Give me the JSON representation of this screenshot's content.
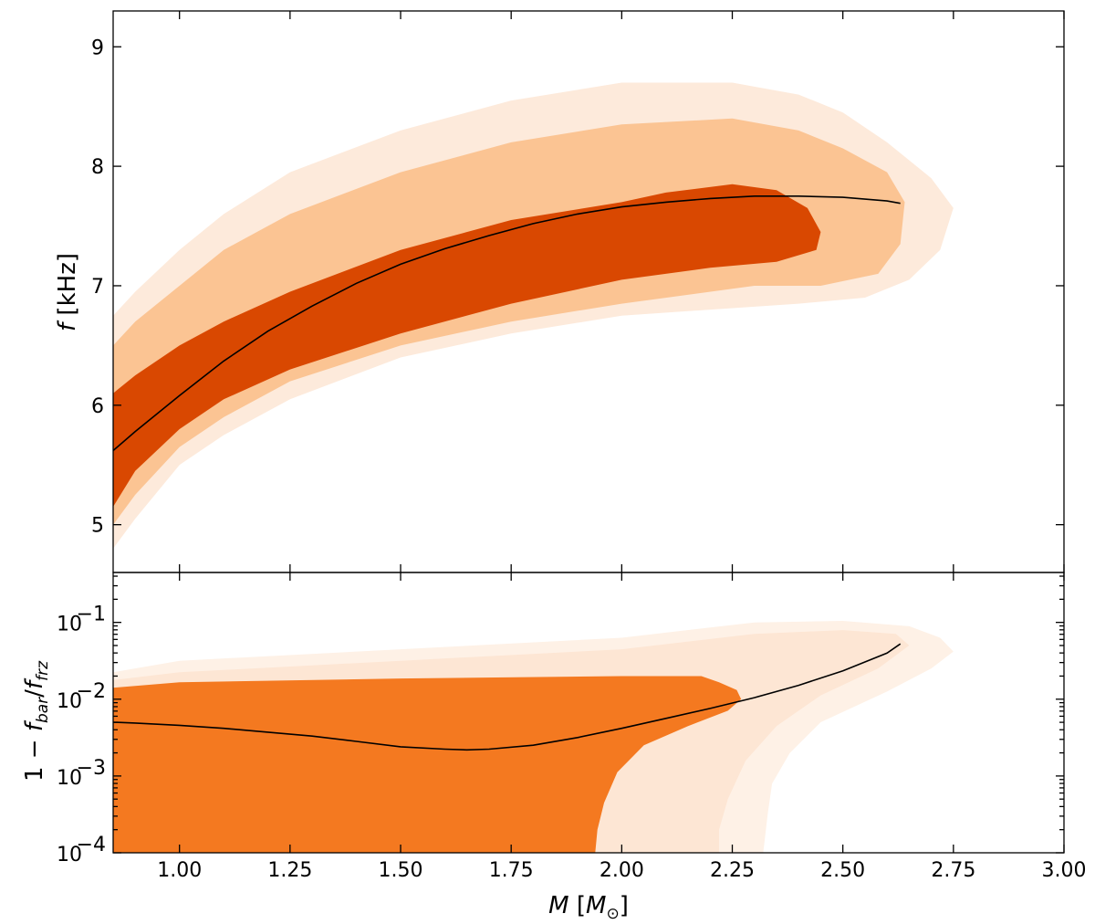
{
  "chart_data": [
    {
      "panel": "top",
      "type": "area",
      "ylabel_main": "f",
      "ylabel_unit": "[kHz]",
      "xlim": [
        0.85,
        3.0
      ],
      "ylim": [
        4.6,
        9.3
      ],
      "yticks": [
        5,
        6,
        7,
        8,
        9
      ],
      "yticklabels": [
        "5",
        "6",
        "7",
        "8",
        "9"
      ],
      "colors": {
        "band_95": "#fdeadb",
        "band_68": "#fbc493",
        "band_median": "#d94801",
        "line": "#000000"
      },
      "bands": [
        {
          "name": "",
          "fill": "#fdeadb",
          "upper": [
            [
              0.85,
              6.75
            ],
            [
              0.9,
              6.95
            ],
            [
              1.0,
              7.3
            ],
            [
              1.1,
              7.6
            ],
            [
              1.25,
              7.95
            ],
            [
              1.5,
              8.3
            ],
            [
              1.75,
              8.55
            ],
            [
              2.0,
              8.7
            ],
            [
              2.25,
              8.7
            ],
            [
              2.4,
              8.6
            ],
            [
              2.5,
              8.45
            ],
            [
              2.6,
              8.2
            ],
            [
              2.7,
              7.9
            ],
            [
              2.75,
              7.65
            ]
          ],
          "lower": [
            [
              2.75,
              7.65
            ],
            [
              2.72,
              7.3
            ],
            [
              2.65,
              7.05
            ],
            [
              2.55,
              6.9
            ],
            [
              2.4,
              6.85
            ],
            [
              2.0,
              6.75
            ],
            [
              1.75,
              6.6
            ],
            [
              1.5,
              6.4
            ],
            [
              1.25,
              6.05
            ],
            [
              1.1,
              5.75
            ],
            [
              1.0,
              5.5
            ],
            [
              0.9,
              5.05
            ],
            [
              0.85,
              4.8
            ]
          ]
        },
        {
          "name": "",
          "fill": "#fbc493",
          "upper": [
            [
              0.85,
              6.5
            ],
            [
              0.9,
              6.7
            ],
            [
              1.0,
              7.0
            ],
            [
              1.1,
              7.3
            ],
            [
              1.25,
              7.6
            ],
            [
              1.5,
              7.95
            ],
            [
              1.75,
              8.2
            ],
            [
              2.0,
              8.35
            ],
            [
              2.25,
              8.4
            ],
            [
              2.4,
              8.3
            ],
            [
              2.5,
              8.15
            ],
            [
              2.6,
              7.95
            ],
            [
              2.64,
              7.7
            ]
          ],
          "lower": [
            [
              2.64,
              7.7
            ],
            [
              2.63,
              7.35
            ],
            [
              2.58,
              7.1
            ],
            [
              2.45,
              7.0
            ],
            [
              2.3,
              7.0
            ],
            [
              2.0,
              6.85
            ],
            [
              1.75,
              6.7
            ],
            [
              1.5,
              6.5
            ],
            [
              1.25,
              6.2
            ],
            [
              1.1,
              5.9
            ],
            [
              1.0,
              5.65
            ],
            [
              0.9,
              5.25
            ],
            [
              0.85,
              5.0
            ]
          ]
        },
        {
          "name": "",
          "fill": "#d94801",
          "upper": [
            [
              0.85,
              6.1
            ],
            [
              0.9,
              6.25
            ],
            [
              1.0,
              6.5
            ],
            [
              1.1,
              6.7
            ],
            [
              1.25,
              6.95
            ],
            [
              1.5,
              7.3
            ],
            [
              1.75,
              7.55
            ],
            [
              2.0,
              7.7
            ],
            [
              2.1,
              7.78
            ],
            [
              2.25,
              7.85
            ],
            [
              2.35,
              7.8
            ],
            [
              2.42,
              7.65
            ],
            [
              2.45,
              7.45
            ]
          ],
          "lower": [
            [
              2.45,
              7.45
            ],
            [
              2.44,
              7.3
            ],
            [
              2.35,
              7.2
            ],
            [
              2.2,
              7.15
            ],
            [
              2.0,
              7.05
            ],
            [
              1.75,
              6.85
            ],
            [
              1.5,
              6.6
            ],
            [
              1.25,
              6.3
            ],
            [
              1.1,
              6.05
            ],
            [
              1.0,
              5.8
            ],
            [
              0.9,
              5.45
            ],
            [
              0.85,
              5.15
            ]
          ]
        }
      ],
      "line": {
        "name": "",
        "x": [
          0.85,
          0.9,
          1.0,
          1.1,
          1.2,
          1.3,
          1.4,
          1.5,
          1.6,
          1.7,
          1.8,
          1.9,
          2.0,
          2.1,
          2.2,
          2.3,
          2.4,
          2.5,
          2.6,
          2.63
        ],
        "y": [
          5.62,
          5.78,
          6.08,
          6.37,
          6.62,
          6.83,
          7.02,
          7.18,
          7.31,
          7.42,
          7.52,
          7.6,
          7.66,
          7.7,
          7.73,
          7.75,
          7.75,
          7.74,
          7.71,
          7.69
        ]
      }
    },
    {
      "panel": "bottom",
      "type": "area",
      "yscale": "log",
      "xlabel_main": "M",
      "xlabel_unit": "[M⊙]",
      "ylabel": "1 − f_bar/f_frz",
      "xlim": [
        0.85,
        3.0
      ],
      "ylim_log10": [
        -4.0,
        -0.35
      ],
      "xticks": [
        1.0,
        1.25,
        1.5,
        1.75,
        2.0,
        2.25,
        2.5,
        2.75,
        3.0
      ],
      "xticklabels": [
        "1.00",
        "1.25",
        "1.50",
        "1.75",
        "2.00",
        "2.25",
        "2.50",
        "2.75",
        "3.00"
      ],
      "yticks_log10": [
        -4,
        -3,
        -2,
        -1
      ],
      "yticklabels": [
        "10",
        "10",
        "10",
        "10"
      ],
      "yticklabel_exponents": [
        "−4",
        "−3",
        "−2",
        "−1"
      ],
      "colors": {
        "band_outer": "#fef1e6",
        "band_mid": "#fde6d4",
        "band_inner": "#f47920",
        "line": "#000000"
      },
      "bands": [
        {
          "name": "",
          "fill": "#fef1e6",
          "upper": [
            [
              0.85,
              -1.65
            ],
            [
              1.0,
              -1.5
            ],
            [
              1.5,
              -1.35
            ],
            [
              2.0,
              -1.2
            ],
            [
              2.3,
              -1.0
            ],
            [
              2.5,
              -0.98
            ],
            [
              2.65,
              -1.05
            ],
            [
              2.72,
              -1.2
            ],
            [
              2.75,
              -1.38
            ]
          ],
          "lower": [
            [
              2.75,
              -1.38
            ],
            [
              2.7,
              -1.6
            ],
            [
              2.6,
              -1.9
            ],
            [
              2.45,
              -2.3
            ],
            [
              2.38,
              -2.7
            ],
            [
              2.34,
              -3.1
            ],
            [
              2.33,
              -3.5
            ],
            [
              2.32,
              -4.0
            ],
            [
              0.85,
              -4.0
            ]
          ]
        },
        {
          "name": "",
          "fill": "#fde6d4",
          "upper": [
            [
              0.85,
              -1.75
            ],
            [
              1.0,
              -1.65
            ],
            [
              1.5,
              -1.5
            ],
            [
              2.0,
              -1.35
            ],
            [
              2.3,
              -1.15
            ],
            [
              2.5,
              -1.1
            ],
            [
              2.62,
              -1.15
            ],
            [
              2.65,
              -1.3
            ]
          ],
          "lower": [
            [
              2.65,
              -1.3
            ],
            [
              2.58,
              -1.6
            ],
            [
              2.45,
              -1.95
            ],
            [
              2.35,
              -2.35
            ],
            [
              2.28,
              -2.8
            ],
            [
              2.24,
              -3.3
            ],
            [
              2.22,
              -3.7
            ],
            [
              2.22,
              -4.0
            ],
            [
              0.85,
              -4.0
            ]
          ]
        },
        {
          "name": "",
          "fill": "#f47920",
          "upper": [
            [
              0.85,
              -1.85
            ],
            [
              1.0,
              -1.78
            ],
            [
              1.5,
              -1.73
            ],
            [
              2.0,
              -1.7
            ],
            [
              2.18,
              -1.7
            ],
            [
              2.22,
              -1.78
            ],
            [
              2.26,
              -1.88
            ],
            [
              2.27,
              -2.0
            ],
            [
              2.24,
              -2.15
            ]
          ],
          "lower": [
            [
              2.24,
              -2.15
            ],
            [
              2.15,
              -2.35
            ],
            [
              2.05,
              -2.6
            ],
            [
              1.99,
              -2.95
            ],
            [
              1.96,
              -3.35
            ],
            [
              1.945,
              -3.7
            ],
            [
              1.94,
              -4.0
            ],
            [
              0.85,
              -4.0
            ]
          ]
        }
      ],
      "line": {
        "name": "",
        "x": [
          0.85,
          0.9,
          1.0,
          1.1,
          1.2,
          1.3,
          1.4,
          1.5,
          1.6,
          1.65,
          1.7,
          1.8,
          1.9,
          2.0,
          2.1,
          2.2,
          2.3,
          2.4,
          2.5,
          2.6,
          2.63
        ],
        "y_log10": [
          -2.3,
          -2.31,
          -2.34,
          -2.38,
          -2.43,
          -2.48,
          -2.55,
          -2.62,
          -2.65,
          -2.66,
          -2.65,
          -2.6,
          -2.5,
          -2.38,
          -2.25,
          -2.12,
          -1.98,
          -1.82,
          -1.63,
          -1.4,
          -1.28
        ]
      }
    }
  ]
}
